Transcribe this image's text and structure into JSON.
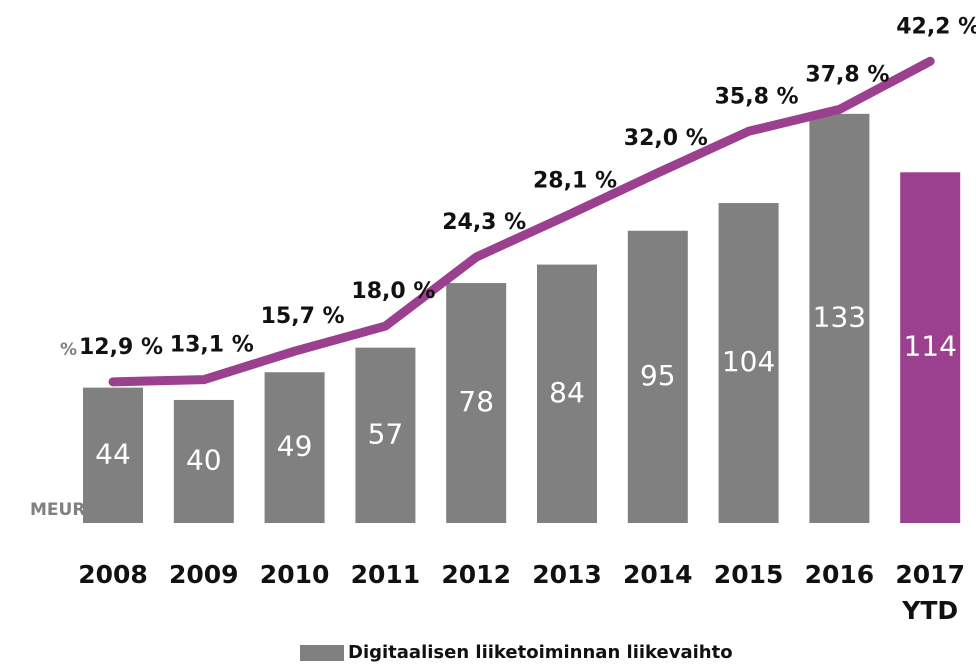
{
  "chart_data": {
    "type": "bar-line",
    "categories": [
      "2008",
      "2009",
      "2010",
      "2011",
      "2012",
      "2013",
      "2014",
      "2015",
      "2016",
      "2017 YTD"
    ],
    "ylabel": "MEUR",
    "y2label": "%",
    "ylim": [
      0,
      170
    ],
    "y2lim": [
      0,
      47.8
    ],
    "series": [
      {
        "name": "Digitaalisen liiketoiminnan liikevaihto",
        "type": "bar",
        "color": "#808080",
        "colors": [
          "#808080",
          "#808080",
          "#808080",
          "#808080",
          "#808080",
          "#808080",
          "#808080",
          "#808080",
          "#808080",
          "#9b3f8f"
        ],
        "values": [
          44,
          40,
          49,
          57,
          78,
          84,
          95,
          104,
          133,
          114
        ]
      },
      {
        "type": "line",
        "axis": "y2",
        "color": "#9b3f8f",
        "values": [
          12.9,
          13.1,
          15.7,
          18.0,
          24.3,
          28.1,
          32.0,
          35.8,
          37.8,
          42.2
        ],
        "value_labels": [
          "12,9 %",
          "13,1 %",
          "15,7 %",
          "18,0 %",
          "24,3 %",
          "28,1 %",
          "32,0 %",
          "35,8 %",
          "37,8 %",
          "42,2 %"
        ]
      }
    ],
    "legend": "bottom"
  }
}
